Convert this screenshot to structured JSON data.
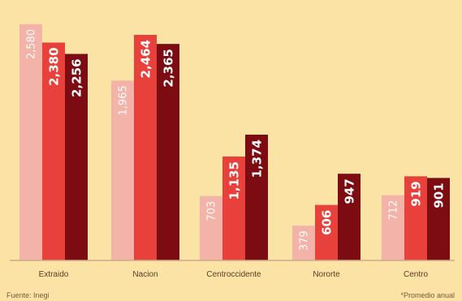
{
  "chart_data": {
    "type": "bar",
    "title": "",
    "xlabel": "",
    "ylabel": "",
    "ylim": [
      0,
      2650
    ],
    "grid": false,
    "categories": [
      "Extraido",
      "Nacion",
      "Centroccidente",
      "Nororte",
      "Centro"
    ],
    "series": [
      {
        "values": [
          2580,
          1965,
          703,
          379,
          712
        ],
        "labels": [
          "2,580",
          "1,965",
          "703",
          "379",
          "712"
        ],
        "color": "#f4b3a8",
        "label_color": "#ffffff"
      },
      {
        "values": [
          2380,
          2464,
          1135,
          606,
          919
        ],
        "labels": [
          "2,380",
          "2,464",
          "1,135",
          "606",
          "919"
        ],
        "color": "#e8403a",
        "label_color": "#ffffff"
      },
      {
        "values": [
          2256,
          2365,
          1374,
          947,
          901
        ],
        "labels": [
          "2,256",
          "2,365",
          "1,374",
          "947",
          "901"
        ],
        "color": "#7c0b12",
        "label_color": "#ffffff"
      }
    ],
    "axis_color": "#c9a98a",
    "label_dark_color": "#1a0a05"
  },
  "footer": {
    "source": "Fuente: Inegi",
    "note": "*Promedio anual"
  }
}
